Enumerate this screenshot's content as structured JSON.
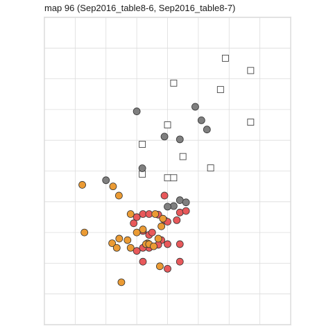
{
  "chart_data": {
    "type": "scatter",
    "title": "map 96 (Sep2016_table8-6, Sep2016_table8-7)",
    "xlabel": "",
    "ylabel": "",
    "xlim": [
      0,
      8
    ],
    "ylim": [
      0,
      10
    ],
    "grid": true,
    "legend": "none",
    "series": [
      {
        "marker": "square",
        "color": "#ffffff",
        "stroke": "#444444",
        "points": [
          [
            5.88,
            8.67
          ],
          [
            6.7,
            8.27
          ],
          [
            4.2,
            7.86
          ],
          [
            5.72,
            7.65
          ],
          [
            6.7,
            6.59
          ],
          [
            4.0,
            6.5
          ],
          [
            3.18,
            5.87
          ],
          [
            4.5,
            5.47
          ],
          [
            5.4,
            5.1
          ],
          [
            3.18,
            4.9
          ],
          [
            4.0,
            4.78
          ],
          [
            4.2,
            4.78
          ]
        ]
      },
      {
        "marker": "circle",
        "color": "#7f7f7f",
        "stroke": "#333333",
        "points": [
          [
            3.0,
            6.94
          ],
          [
            4.9,
            7.09
          ],
          [
            5.1,
            6.65
          ],
          [
            5.28,
            6.35
          ],
          [
            3.9,
            6.12
          ],
          [
            4.4,
            6.03
          ],
          [
            3.18,
            5.09
          ],
          [
            2.0,
            4.7
          ],
          [
            4.4,
            4.05
          ],
          [
            4.6,
            3.98
          ],
          [
            4.2,
            3.86
          ],
          [
            4.0,
            3.84
          ]
        ]
      },
      {
        "marker": "circle",
        "color": "#e8595b",
        "stroke": "#333333",
        "points": [
          [
            3.9,
            4.2
          ],
          [
            3.2,
            3.6
          ],
          [
            3.4,
            3.6
          ],
          [
            3.7,
            3.58
          ],
          [
            3.0,
            3.5
          ],
          [
            4.4,
            3.65
          ],
          [
            4.6,
            3.7
          ],
          [
            3.9,
            3.4
          ],
          [
            4.0,
            3.35
          ],
          [
            4.3,
            3.4
          ],
          [
            2.9,
            3.3
          ],
          [
            3.2,
            3.05
          ],
          [
            3.4,
            2.92
          ],
          [
            3.5,
            3.0
          ],
          [
            3.8,
            2.75
          ],
          [
            4.0,
            2.62
          ],
          [
            4.4,
            2.62
          ],
          [
            3.4,
            2.5
          ],
          [
            3.0,
            2.4
          ],
          [
            3.2,
            2.5
          ],
          [
            3.7,
            2.6
          ],
          [
            3.2,
            2.05
          ],
          [
            4.4,
            2.05
          ],
          [
            4.0,
            1.82
          ]
        ]
      },
      {
        "marker": "circle",
        "color": "#eb9b34",
        "stroke": "#333333",
        "points": [
          [
            1.23,
            4.55
          ],
          [
            2.23,
            4.5
          ],
          [
            2.42,
            4.2
          ],
          [
            2.8,
            3.6
          ],
          [
            3.6,
            3.6
          ],
          [
            3.85,
            3.45
          ],
          [
            3.8,
            3.2
          ],
          [
            3.2,
            3.1
          ],
          [
            3.0,
            3.0
          ],
          [
            1.3,
            3.0
          ],
          [
            2.43,
            2.8
          ],
          [
            2.2,
            2.65
          ],
          [
            2.35,
            2.5
          ],
          [
            3.7,
            2.8
          ],
          [
            3.35,
            2.65
          ],
          [
            3.3,
            2.62
          ],
          [
            3.4,
            2.62
          ],
          [
            3.55,
            2.55
          ],
          [
            2.8,
            2.5
          ],
          [
            2.7,
            2.75
          ],
          [
            3.75,
            1.9
          ],
          [
            2.5,
            1.38
          ]
        ]
      }
    ]
  }
}
